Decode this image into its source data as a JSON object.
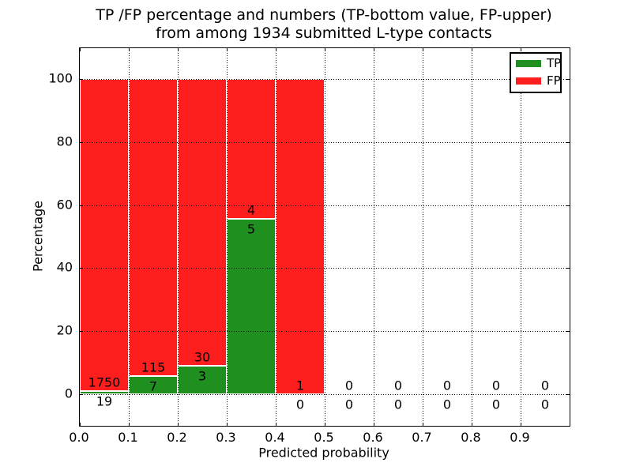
{
  "title": {
    "line1": "TP /FP percentage and numbers (TP-bottom value, FP-upper)",
    "line2": "from among 1934 submitted L-type contacts"
  },
  "axes": {
    "xlabel": "Predicted probability",
    "ylabel": "Percentage",
    "xtick_labels": [
      "0.0",
      "0.1",
      "0.2",
      "0.3",
      "0.4",
      "0.5",
      "0.6",
      "0.7",
      "0.8",
      "0.9"
    ],
    "ytick_labels": [
      "0",
      "20",
      "40",
      "60",
      "80",
      "100"
    ]
  },
  "legend": {
    "position": "upper right",
    "entries": [
      {
        "label": "TP",
        "color": "#1f8f1f"
      },
      {
        "label": "FP",
        "color": "#ff1e1e"
      }
    ]
  },
  "chart_data": {
    "type": "bar",
    "stacked": true,
    "title": "TP /FP percentage and numbers (TP-bottom value, FP-upper) from among 1934 submitted L-type contacts",
    "total_contacts": 1934,
    "xlabel": "Predicted probability",
    "ylabel": "Percentage",
    "xlim": [
      0.0,
      1.0
    ],
    "ylim": [
      -10.5,
      110
    ],
    "xticks": [
      0.0,
      0.1,
      0.2,
      0.3,
      0.4,
      0.5,
      0.6,
      0.7,
      0.8,
      0.9
    ],
    "yticks": [
      0,
      20,
      40,
      60,
      80,
      100
    ],
    "grid": "dotted",
    "bin_width": 0.1,
    "colors": {
      "tp": "#1f8f1f",
      "fp": "#ff1e1e"
    },
    "series": [
      {
        "name": "TP",
        "color": "#1f8f1f"
      },
      {
        "name": "FP",
        "color": "#ff1e1e"
      }
    ],
    "bins": [
      {
        "x0": 0.0,
        "tp_count": 19,
        "fp_count": 1750,
        "tp_pct": 1.07,
        "fp_pct": 98.93
      },
      {
        "x0": 0.1,
        "tp_count": 7,
        "fp_count": 115,
        "tp_pct": 5.74,
        "fp_pct": 94.26
      },
      {
        "x0": 0.2,
        "tp_count": 3,
        "fp_count": 30,
        "tp_pct": 9.09,
        "fp_pct": 90.91
      },
      {
        "x0": 0.3,
        "tp_count": 5,
        "fp_count": 4,
        "tp_pct": 55.56,
        "fp_pct": 44.44
      },
      {
        "x0": 0.4,
        "tp_count": 0,
        "fp_count": 1,
        "tp_pct": 0.0,
        "fp_pct": 100.0
      },
      {
        "x0": 0.5,
        "tp_count": 0,
        "fp_count": 0,
        "tp_pct": 0.0,
        "fp_pct": 0.0
      },
      {
        "x0": 0.6,
        "tp_count": 0,
        "fp_count": 0,
        "tp_pct": 0.0,
        "fp_pct": 0.0
      },
      {
        "x0": 0.7,
        "tp_count": 0,
        "fp_count": 0,
        "tp_pct": 0.0,
        "fp_pct": 0.0
      },
      {
        "x0": 0.8,
        "tp_count": 0,
        "fp_count": 0,
        "tp_pct": 0.0,
        "fp_pct": 0.0
      },
      {
        "x0": 0.9,
        "tp_count": 0,
        "fp_count": 0,
        "tp_pct": 0.0,
        "fp_pct": 0.0
      }
    ]
  }
}
